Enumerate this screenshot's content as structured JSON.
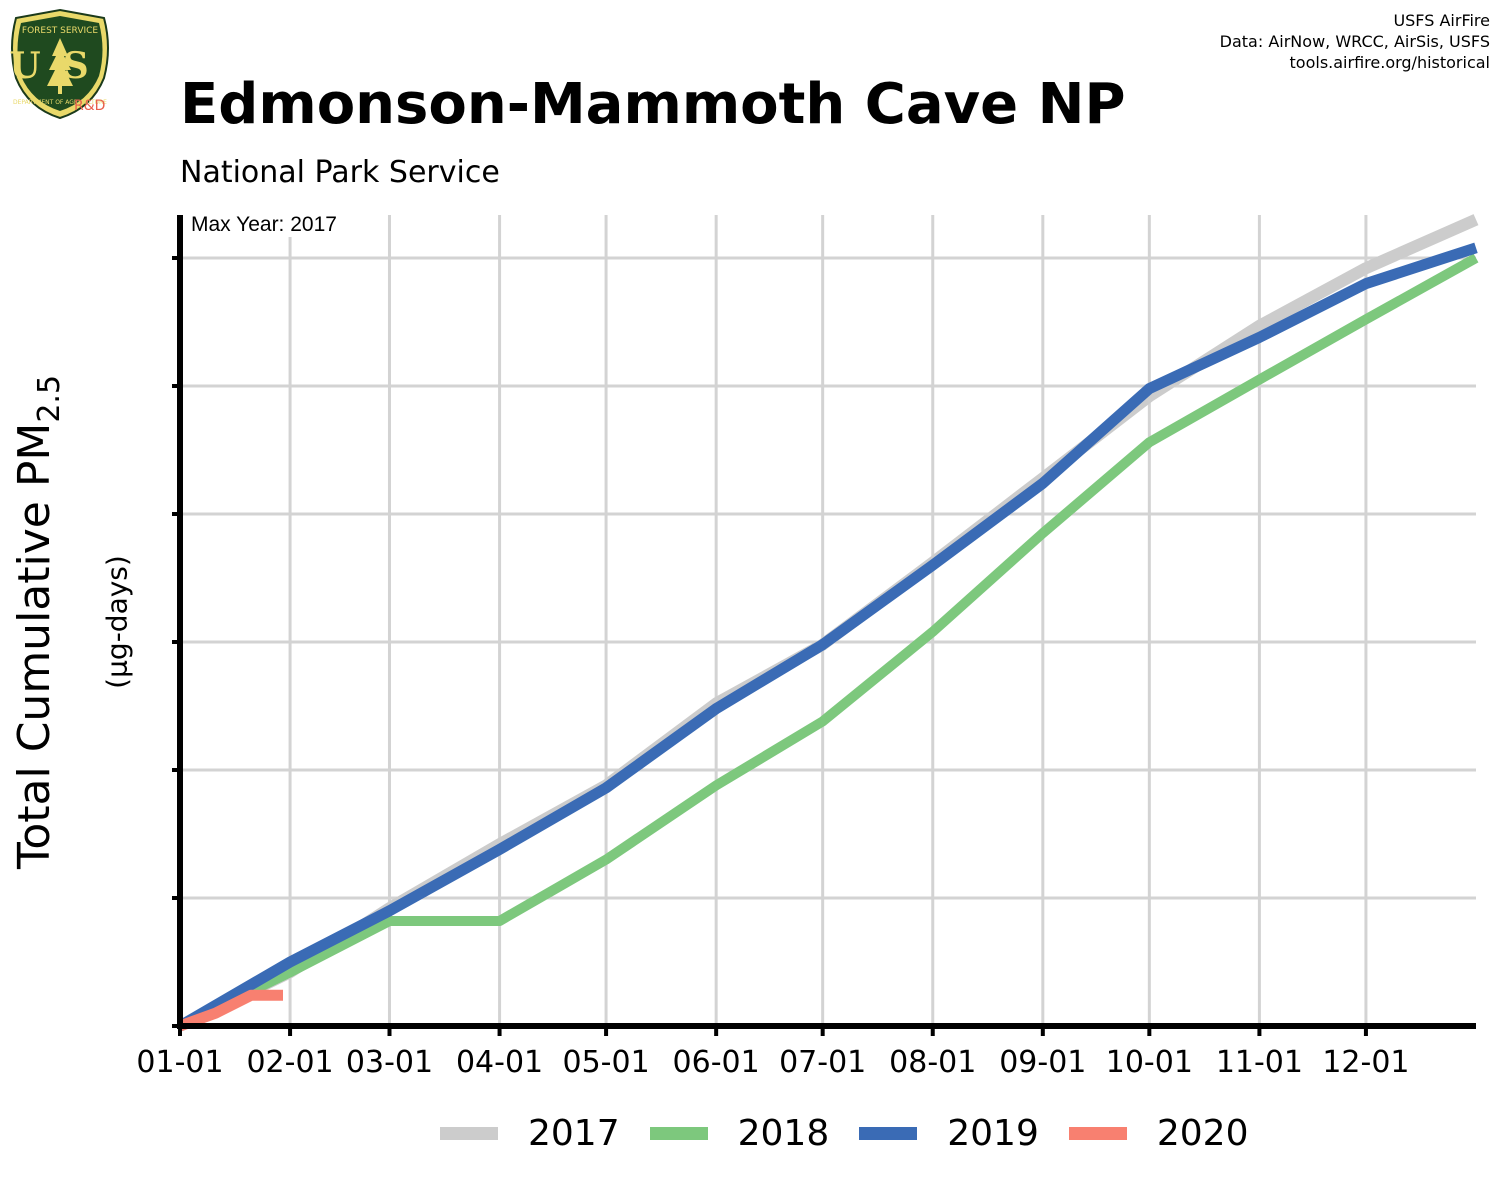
{
  "header": {
    "title": "Edmonson-Mammoth Cave NP",
    "subtitle": "National Park Service",
    "credits": [
      "USFS AirFire",
      "Data: AirNow, WRCC, AirSis, USFS",
      "tools.airfire.org/historical"
    ],
    "logo_text": {
      "top": "FOREST SERVICE",
      "initials": "US",
      "bottom": "DEPARTMENT OF AGRICULTURE"
    },
    "rd_label": "R&D"
  },
  "axes": {
    "ylabel_main": "Total Cumulative PM",
    "ylabel_sub": "2.5",
    "yunits": "(µg-days)",
    "annotation": "Max Year: 2017"
  },
  "colors": {
    "2017": "#cccccc",
    "2018": "#7dc87d",
    "2019": "#3a6bb5",
    "2020": "#f88070",
    "grid": "#d3d3d3",
    "axis": "#000000"
  },
  "chart_data": {
    "type": "line",
    "title": "Edmonson-Mammoth Cave NP",
    "subtitle": "National Park Service",
    "xlabel": "",
    "ylabel": "Total Cumulative PM2.5 (µg-days)",
    "xlim": [
      0,
      365
    ],
    "ylim": [
      0,
      6.3
    ],
    "x_tick_labels": [
      "01-01",
      "02-01",
      "03-01",
      "04-01",
      "05-01",
      "06-01",
      "07-01",
      "08-01",
      "09-01",
      "10-01",
      "11-01",
      "12-01"
    ],
    "x_tick_values": [
      0,
      31,
      59,
      90,
      120,
      151,
      181,
      212,
      243,
      273,
      304,
      334
    ],
    "y_ticks": [
      0,
      1,
      2,
      3,
      4,
      5,
      6
    ],
    "y_tick_labels_shown": false,
    "legend_position": "bottom",
    "series": [
      {
        "name": "2017",
        "x": [
          0,
          31,
          59,
          90,
          120,
          151,
          181,
          212,
          243,
          273,
          304,
          334,
          365
        ],
        "y": [
          0,
          0.42,
          0.92,
          1.42,
          1.88,
          2.52,
          2.98,
          3.62,
          4.28,
          4.92,
          5.47,
          5.92,
          6.3
        ]
      },
      {
        "name": "2018",
        "x": [
          0,
          31,
          59,
          90,
          120,
          151,
          181,
          212,
          243,
          273,
          304,
          334,
          365
        ],
        "y": [
          0,
          0.42,
          0.82,
          0.82,
          1.3,
          1.88,
          2.38,
          3.08,
          3.85,
          4.56,
          5.05,
          5.52,
          6.0
        ]
      },
      {
        "name": "2019",
        "x": [
          0,
          31,
          59,
          90,
          120,
          151,
          181,
          212,
          243,
          273,
          304,
          334,
          365
        ],
        "y": [
          0,
          0.5,
          0.9,
          1.38,
          1.86,
          2.48,
          2.98,
          3.6,
          4.24,
          4.98,
          5.38,
          5.8,
          6.08
        ]
      },
      {
        "name": "2020",
        "x": [
          0,
          10,
          20,
          29
        ],
        "y": [
          0,
          0.1,
          0.24,
          0.24
        ]
      }
    ]
  }
}
